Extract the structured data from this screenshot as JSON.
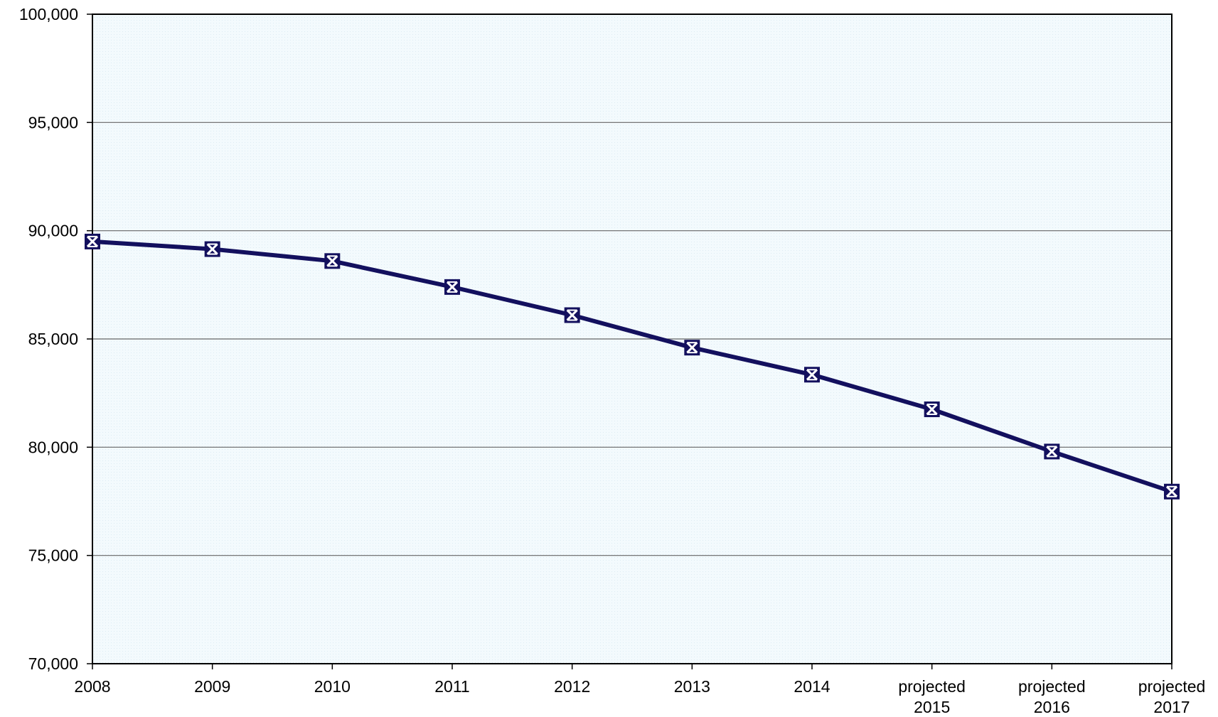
{
  "chart_data": {
    "type": "line",
    "title": "",
    "xlabel": "",
    "ylabel": "",
    "categories": [
      [
        "2008"
      ],
      [
        "2009"
      ],
      [
        "2010"
      ],
      [
        "2011"
      ],
      [
        "2012"
      ],
      [
        "2013"
      ],
      [
        "2014"
      ],
      [
        "projected",
        "2015"
      ],
      [
        "projected",
        "2016"
      ],
      [
        "projected",
        "2017"
      ]
    ],
    "y_ticks": [
      "70,000",
      "75,000",
      "80,000",
      "85,000",
      "90,000",
      "95,000",
      "100,000"
    ],
    "ylim": [
      70000,
      100000
    ],
    "grid": true,
    "legend": "none",
    "series": [
      {
        "values": [
          89500,
          89150,
          88600,
          87400,
          86100,
          84600,
          83350,
          81750,
          79800,
          77950
        ],
        "color": "#13105e",
        "marker": "square-x"
      }
    ],
    "plot_background": "#f3fafd",
    "gridline_color": "#666666"
  }
}
